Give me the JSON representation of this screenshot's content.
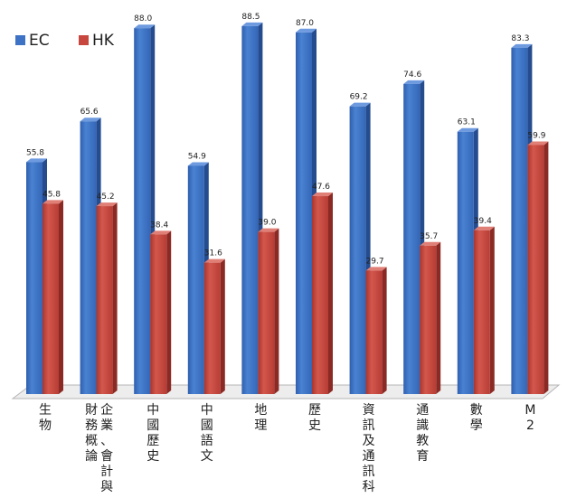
{
  "chart_data": {
    "type": "bar",
    "categories": [
      "生物",
      "企業、會計與財務概論",
      "中國歷史",
      "中國語文",
      "地理",
      "歷史",
      "資訊及通訊科技",
      "通識教育",
      "數學",
      "M2"
    ],
    "category_columns": [
      [
        "生物"
      ],
      [
        "財務概論",
        "企業、會計與"
      ],
      [
        "中國歷史"
      ],
      [
        "中國語文"
      ],
      [
        "地理"
      ],
      [
        "歷史"
      ],
      [
        "資訊及通訊科技"
      ],
      [
        "通識教育"
      ],
      [
        "數學"
      ],
      [
        "M2"
      ]
    ],
    "series": [
      {
        "name": "EC",
        "color": "#3d72c4",
        "values": [
          55.8,
          65.6,
          88.0,
          54.9,
          88.5,
          87.0,
          69.2,
          74.6,
          63.1,
          83.3
        ],
        "labels": [
          "55.8",
          "65.6",
          "88.0",
          "54.9",
          "88.5",
          "87.0",
          "69.2",
          "74.6",
          "63.1",
          "83.3"
        ]
      },
      {
        "name": "HK",
        "color": "#c7463d",
        "values": [
          45.8,
          45.2,
          38.4,
          31.6,
          39.0,
          47.6,
          29.7,
          35.7,
          39.4,
          59.9
        ],
        "labels": [
          "45.8",
          "45.2",
          "38.4",
          "31.6",
          "39.0",
          "47.6",
          "29.7",
          "35.7",
          "39.4",
          "59.9"
        ]
      }
    ],
    "ylim": [
      0,
      90
    ],
    "grid": false,
    "legend": "top-left",
    "style": "3d"
  }
}
